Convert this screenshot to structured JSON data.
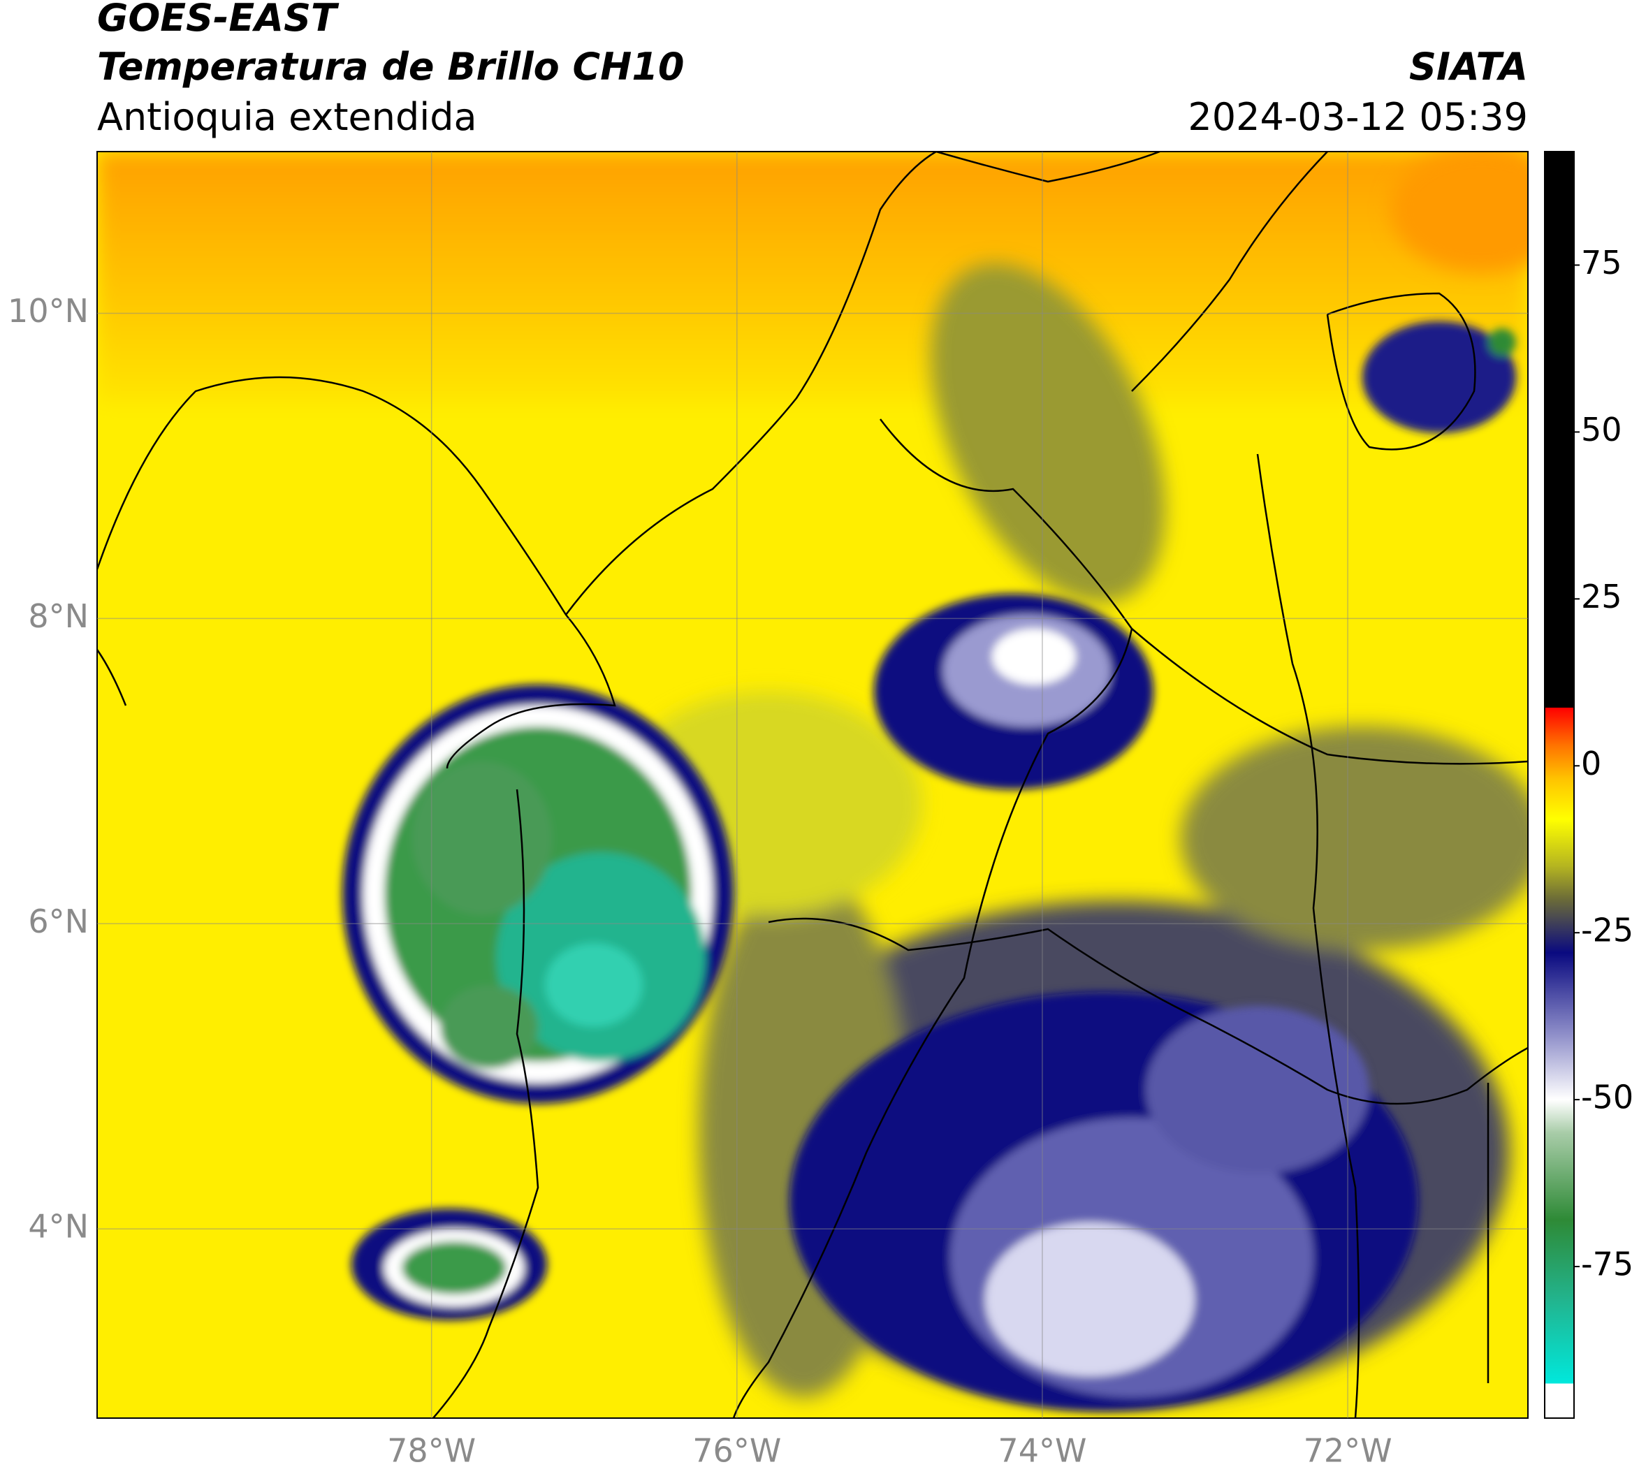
{
  "chart_data": {
    "type": "map",
    "title": "GOES-EAST",
    "subtitle": "Temperatura de Brillo CH10",
    "region": "Antioquia extendida",
    "source": "SIATA",
    "datetime": "2024-03-12 05:39",
    "xlim": [
      -80.19,
      -70.82
    ],
    "ylim": [
      2.76,
      11.06
    ],
    "xticks": [
      {
        "value": -78,
        "label": "78°W"
      },
      {
        "value": -76,
        "label": "76°W"
      },
      {
        "value": -74,
        "label": "74°W"
      },
      {
        "value": -72,
        "label": "72°W"
      }
    ],
    "yticks": [
      {
        "value": 4,
        "label": "4°N"
      },
      {
        "value": 6,
        "label": "6°N"
      },
      {
        "value": 8,
        "label": "8°N"
      },
      {
        "value": 10,
        "label": "10°N"
      }
    ],
    "grid": true,
    "colorbar": {
      "lim": [
        -97.7,
        92
      ],
      "ticks": [
        -75,
        -50,
        -25,
        0,
        25,
        50,
        75
      ],
      "stops": [
        {
          "value": -97.7,
          "color": "#ffffff"
        },
        {
          "value": -92.5,
          "color": "#ffffff"
        },
        {
          "value": -92.5,
          "color": "#00e8dc"
        },
        {
          "value": -80,
          "color": "#22b48e"
        },
        {
          "value": -68,
          "color": "#2e8a36"
        },
        {
          "value": -55,
          "color": "#a8cca8"
        },
        {
          "value": -50,
          "color": "#ffffff"
        },
        {
          "value": -40,
          "color": "#8c8cc8"
        },
        {
          "value": -28,
          "color": "#0a0a80"
        },
        {
          "value": -20,
          "color": "#6b6b38"
        },
        {
          "value": -15,
          "color": "#b5b520"
        },
        {
          "value": -8,
          "color": "#ffff00"
        },
        {
          "value": -2,
          "color": "#ffc400"
        },
        {
          "value": 3,
          "color": "#ff7400"
        },
        {
          "value": 8.7,
          "color": "#ff0000"
        },
        {
          "value": 8.7,
          "color": "#000000"
        },
        {
          "value": 92,
          "color": "#000000"
        }
      ]
    }
  }
}
